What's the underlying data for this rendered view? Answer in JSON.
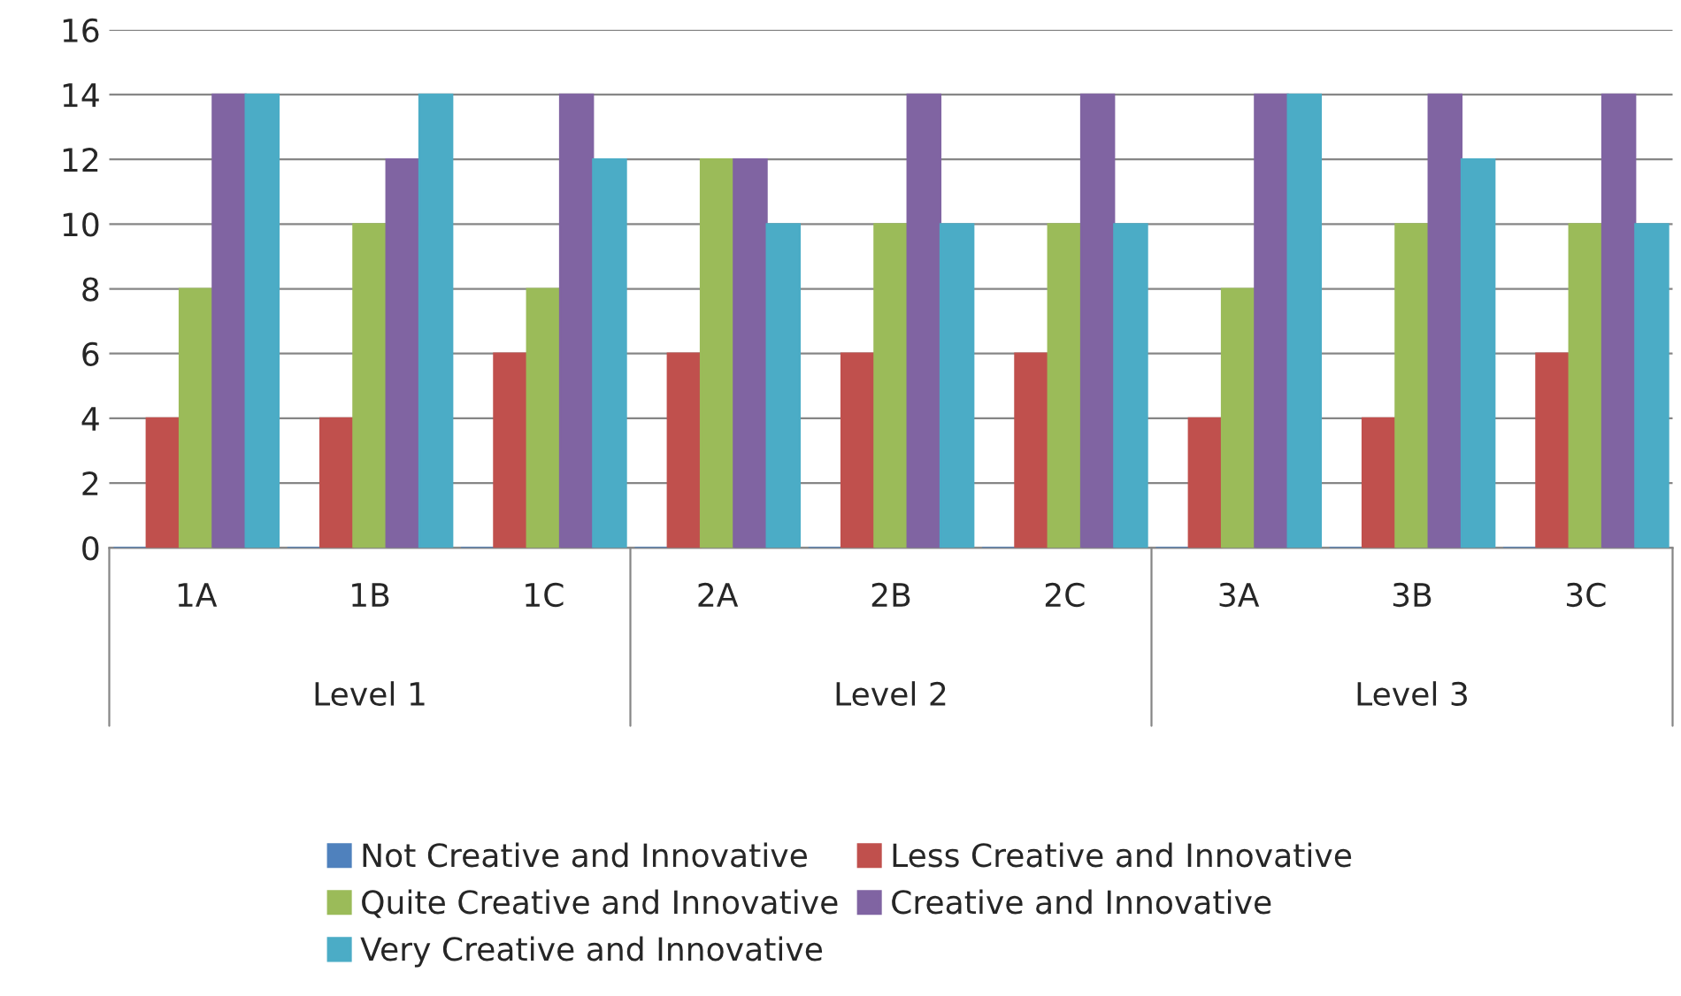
{
  "chart_data": {
    "type": "bar",
    "categories": [
      "1A",
      "1B",
      "1C",
      "2A",
      "2B",
      "2C",
      "3A",
      "3B",
      "3C"
    ],
    "series": [
      {
        "name": "Not Creative and Innovative",
        "color": "#4f81bd",
        "values": [
          0,
          0,
          0,
          0,
          0,
          0,
          0,
          0,
          0
        ]
      },
      {
        "name": "Less Creative and Innovative",
        "color": "#c0504d",
        "values": [
          4,
          4,
          6,
          6,
          6,
          6,
          4,
          4,
          6
        ]
      },
      {
        "name": "Quite Creative and Innovative",
        "color": "#9bbb59",
        "values": [
          8,
          10,
          8,
          12,
          10,
          10,
          8,
          10,
          10
        ]
      },
      {
        "name": "Creative and Innovative",
        "color": "#8064a2",
        "values": [
          14,
          12,
          14,
          12,
          14,
          14,
          14,
          14,
          14
        ]
      },
      {
        "name": "Very Creative and Innovative",
        "color": "#4bacc6",
        "values": [
          14,
          14,
          12,
          10,
          10,
          10,
          14,
          12,
          10
        ]
      }
    ],
    "annotations": [
      "Level 1",
      "Level 2",
      "Level 3"
    ],
    "ylim": [
      0,
      16
    ],
    "yticks": [
      0,
      2,
      4,
      6,
      8,
      10,
      12,
      14,
      16
    ],
    "grid": "y",
    "legend": "bottom"
  }
}
